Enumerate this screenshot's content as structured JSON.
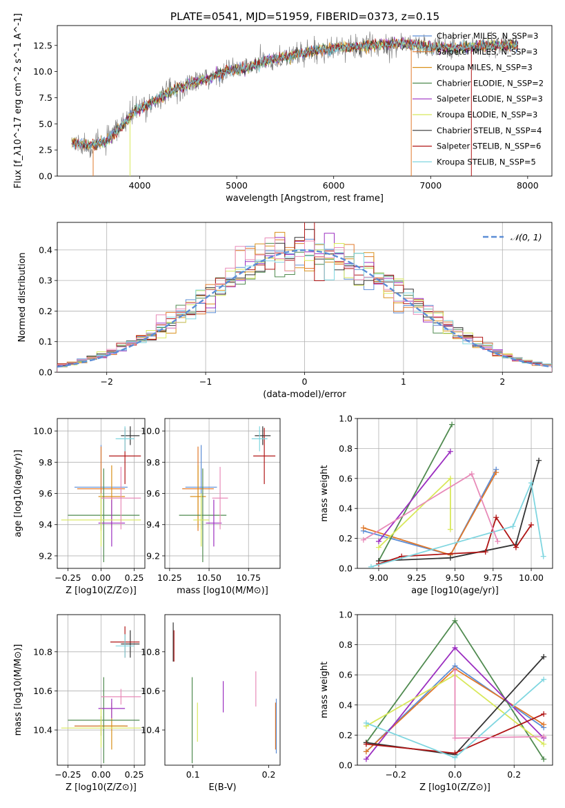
{
  "figure": {
    "title": "PLATE=0541, MJD=51959, FIBERID=0373, z=0.15"
  },
  "chart_data": [
    {
      "id": "spectrum",
      "type": "line",
      "xlabel": "wavelength [Angstrom, rest frame]",
      "ylabel": "Flux [f_λ10^-17 erg cm^-2 s^-1 A^-1]",
      "xlim": [
        3150,
        8250
      ],
      "ylim": [
        0,
        14.4
      ],
      "xticks": [
        4000,
        5000,
        6000,
        7000,
        8000
      ],
      "yticks": [
        0.0,
        2.5,
        5.0,
        7.5,
        10.0,
        12.5
      ],
      "wave_range": [
        3300,
        7900
      ],
      "continuum_anchors": [
        [
          3300,
          3.2
        ],
        [
          3500,
          2.9
        ],
        [
          3650,
          3.3
        ],
        [
          3800,
          4.6
        ],
        [
          3950,
          6.2
        ],
        [
          4100,
          6.9
        ],
        [
          4300,
          8.0
        ],
        [
          4500,
          8.8
        ],
        [
          4700,
          9.3
        ],
        [
          4900,
          10.1
        ],
        [
          5100,
          10.3
        ],
        [
          5300,
          11.0
        ],
        [
          5500,
          11.4
        ],
        [
          5800,
          12.0
        ],
        [
          6100,
          12.3
        ],
        [
          6400,
          12.5
        ],
        [
          6700,
          12.7
        ],
        [
          7000,
          12.3
        ],
        [
          7300,
          12.3
        ],
        [
          7600,
          12.5
        ],
        [
          7900,
          12.5
        ]
      ],
      "series": [
        {
          "name": "Chabrier MILES, N_SSP=3",
          "color": "#5b8dd6"
        },
        {
          "name": "Salpeter MILES, N_SSP=3",
          "color": "#e0782a"
        },
        {
          "name": "Kroupa MILES, N_SSP=3",
          "color": "#d9901a"
        },
        {
          "name": "Chabrier ELODIE, N_SSP=2",
          "color": "#4f8a4f"
        },
        {
          "name": "Salpeter ELODIE, N_SSP=3",
          "color": "#9b2ec0"
        },
        {
          "name": "Kroupa ELODIE, N_SSP=3",
          "color": "#d8e85a"
        },
        {
          "name": "Chabrier STELIB, N_SSP=4",
          "color": "#333333"
        },
        {
          "name": "Salpeter STELIB, N_SSP=6",
          "color": "#b01515"
        },
        {
          "name": "Kroupa STELIB, N_SSP=5",
          "color": "#7fd6e0"
        }
      ],
      "data_color": "#808080"
    },
    {
      "id": "residuals",
      "type": "histogram",
      "xlabel": "(data-model)/error",
      "ylabel": "Normed distribution",
      "xlim": [
        -2.5,
        2.5
      ],
      "ylim": [
        0,
        0.49
      ],
      "xticks": [
        -2,
        -1,
        0,
        1,
        2
      ],
      "xtick_labels": [
        "−2",
        "−1",
        "0",
        "1",
        "2"
      ],
      "yticks": [
        0.0,
        0.1,
        0.2,
        0.3,
        0.4
      ],
      "grid": true,
      "legend": {
        "label": "𝒩(0, 1)",
        "placement": "top-right",
        "color": "#5b8dd6"
      },
      "bins": [
        -2.5,
        2.5,
        50
      ]
    },
    {
      "id": "age_vs_Z",
      "type": "scatter",
      "xlabel": "Z [log10(Z/Z⊙)]",
      "ylabel": "age  [log10(age/yr)]",
      "xlim": [
        -0.33,
        0.33
      ],
      "ylim": [
        9.12,
        10.08
      ],
      "xticks": [
        -0.25,
        0.0,
        0.25
      ],
      "xtick_labels": [
        "−0.25",
        "0.00",
        "0.25"
      ],
      "yticks": [
        9.2,
        9.4,
        9.6,
        9.8,
        10.0
      ],
      "grid": true,
      "points": [
        {
          "color": "#5b8dd6",
          "x": 0.0,
          "xerr": 0.2,
          "y": 9.64,
          "yerr": 0.27
        },
        {
          "color": "#e0782a",
          "x": 0.0,
          "xerr": 0.18,
          "y": 9.63,
          "yerr": 0.27
        },
        {
          "color": "#d9901a",
          "x": 0.08,
          "xerr": 0.1,
          "y": 9.58,
          "yerr": 0.2
        },
        {
          "color": "#4f8a4f",
          "x": 0.02,
          "xerr": 0.27,
          "y": 9.46,
          "yerr": 0.3
        },
        {
          "color": "#9b2ec0",
          "x": 0.08,
          "xerr": 0.1,
          "y": 9.41,
          "yerr": 0.15
        },
        {
          "color": "#d8e85a",
          "x": 0.0,
          "xerr": 0.3,
          "y": 9.43,
          "yerr": 0.17
        },
        {
          "color": "#333333",
          "x": 0.22,
          "xerr": 0.07,
          "y": 9.97,
          "yerr": 0.06
        },
        {
          "color": "#b01515",
          "x": 0.18,
          "xerr": 0.12,
          "y": 9.84,
          "yerr": 0.18
        },
        {
          "color": "#7fd6e0",
          "x": 0.18,
          "xerr": 0.07,
          "y": 9.95,
          "yerr": 0.08
        },
        {
          "color": "#e88ab8",
          "x": 0.15,
          "xerr": 0.15,
          "y": 9.57,
          "yerr": 0.2
        }
      ]
    },
    {
      "id": "age_vs_mass",
      "type": "scatter",
      "xlabel": "mass [log10(M/M⊙)]",
      "ylabel": "",
      "xlim": [
        10.22,
        10.95
      ],
      "ylim": [
        9.12,
        10.08
      ],
      "xticks": [
        10.25,
        10.5,
        10.75
      ],
      "xtick_labels": [
        "10.25",
        "10.50",
        "10.75"
      ],
      "yticks": [
        9.2,
        9.4,
        9.6,
        9.8,
        10.0
      ],
      "grid": true,
      "points": [
        {
          "color": "#5b8dd6",
          "x": 10.45,
          "xerr": 0.1,
          "y": 9.64,
          "yerr": 0.27
        },
        {
          "color": "#e0782a",
          "x": 10.43,
          "xerr": 0.1,
          "y": 9.63,
          "yerr": 0.27
        },
        {
          "color": "#d9901a",
          "x": 10.43,
          "xerr": 0.05,
          "y": 9.58,
          "yerr": 0.2
        },
        {
          "color": "#4f8a4f",
          "x": 10.46,
          "xerr": 0.15,
          "y": 9.46,
          "yerr": 0.3
        },
        {
          "color": "#9b2ec0",
          "x": 10.53,
          "xerr": 0.05,
          "y": 9.41,
          "yerr": 0.15
        },
        {
          "color": "#d8e85a",
          "x": 10.45,
          "xerr": 0.05,
          "y": 9.43,
          "yerr": 0.17
        },
        {
          "color": "#333333",
          "x": 10.84,
          "xerr": 0.05,
          "y": 9.97,
          "yerr": 0.06
        },
        {
          "color": "#b01515",
          "x": 10.85,
          "xerr": 0.07,
          "y": 9.84,
          "yerr": 0.18
        },
        {
          "color": "#7fd6e0",
          "x": 10.82,
          "xerr": 0.05,
          "y": 9.95,
          "yerr": 0.08
        },
        {
          "color": "#e88ab8",
          "x": 10.57,
          "xerr": 0.05,
          "y": 9.57,
          "yerr": 0.2
        }
      ]
    },
    {
      "id": "massweight_vs_age",
      "type": "line",
      "xlabel": "age  [log10(age/yr)]",
      "ylabel": "mass weight",
      "xlim": [
        8.86,
        10.14
      ],
      "ylim": [
        0,
        1
      ],
      "xticks": [
        9.0,
        9.25,
        9.5,
        9.75,
        10.0
      ],
      "xtick_labels": [
        "9.00",
        "9.25",
        "9.50",
        "9.75",
        "10.00"
      ],
      "yticks": [
        0.0,
        0.2,
        0.4,
        0.6,
        0.8,
        1.0
      ],
      "grid": true,
      "series": [
        {
          "color": "#5b8dd6",
          "x": [
            8.9,
            9.47,
            9.77
          ],
          "y": [
            0.25,
            0.09,
            0.66
          ]
        },
        {
          "color": "#e0782a",
          "x": [
            8.9,
            9.47,
            9.77
          ],
          "y": [
            0.27,
            0.09,
            0.64
          ]
        },
        {
          "color": "#4f8a4f",
          "x": [
            9.0,
            9.48
          ],
          "y": [
            0.05,
            0.96
          ]
        },
        {
          "color": "#9b2ec0",
          "x": [
            9.0,
            9.47
          ],
          "y": [
            0.18,
            0.78
          ]
        },
        {
          "color": "#d8e85a",
          "x": [
            9.0,
            9.47,
            9.47
          ],
          "y": [
            0.14,
            0.6,
            0.26
          ]
        },
        {
          "color": "#333333",
          "x": [
            9.0,
            9.47,
            9.9,
            10.05
          ],
          "y": [
            0.05,
            0.07,
            0.16,
            0.72
          ]
        },
        {
          "color": "#b01515",
          "x": [
            9.0,
            9.15,
            9.7,
            9.77,
            9.9,
            10.0
          ],
          "y": [
            0.03,
            0.08,
            0.11,
            0.34,
            0.14,
            0.29
          ]
        },
        {
          "color": "#7fd6e0",
          "x": [
            8.95,
            9.88,
            10.0,
            10.08
          ],
          "y": [
            0.01,
            0.28,
            0.57,
            0.08
          ]
        },
        {
          "color": "#e88ab8",
          "x": [
            8.9,
            9.61,
            9.78
          ],
          "y": [
            0.19,
            0.63,
            0.18
          ]
        }
      ]
    },
    {
      "id": "mass_vs_Z",
      "type": "scatter",
      "xlabel": "Z [log10(Z/Z⊙)]",
      "ylabel": "mass [log10(M/M⊙)]",
      "xlim": [
        -0.33,
        0.33
      ],
      "ylim": [
        10.22,
        10.99
      ],
      "xticks": [
        -0.25,
        0.0,
        0.25
      ],
      "xtick_labels": [
        "−0.25",
        "0.00",
        "0.25"
      ],
      "yticks": [
        10.4,
        10.6,
        10.8
      ],
      "grid": true,
      "points": [
        {
          "color": "#5b8dd6",
          "x": 0.0,
          "xerr": 0.2,
          "y": 10.42,
          "yerr": 0.05
        },
        {
          "color": "#e0782a",
          "x": 0.0,
          "xerr": 0.2,
          "y": 10.42,
          "yerr": 0.05
        },
        {
          "color": "#d9901a",
          "x": 0.08,
          "xerr": 0.1,
          "y": 10.42,
          "yerr": 0.12
        },
        {
          "color": "#4f8a4f",
          "x": 0.02,
          "xerr": 0.27,
          "y": 10.45,
          "yerr": 0.22
        },
        {
          "color": "#9b2ec0",
          "x": 0.08,
          "xerr": 0.1,
          "y": 10.51,
          "yerr": 0.05
        },
        {
          "color": "#d8e85a",
          "x": 0.0,
          "xerr": 0.3,
          "y": 10.41,
          "yerr": 0.1
        },
        {
          "color": "#333333",
          "x": 0.22,
          "xerr": 0.07,
          "y": 10.84,
          "yerr": 0.07
        },
        {
          "color": "#b01515",
          "x": 0.18,
          "xerr": 0.11,
          "y": 10.85,
          "yerr": 0.08
        },
        {
          "color": "#7fd6e0",
          "x": 0.18,
          "xerr": 0.07,
          "y": 10.83,
          "yerr": 0.06
        },
        {
          "color": "#e88ab8",
          "x": 0.15,
          "xerr": 0.15,
          "y": 10.57,
          "yerr": 0.04
        }
      ]
    },
    {
      "id": "mass_vs_ebv",
      "type": "scatter",
      "xlabel": "E(B-V)",
      "ylabel": "",
      "xlim": [
        0.063,
        0.215
      ],
      "ylim": [
        10.22,
        10.99
      ],
      "xticks": [
        0.1,
        0.2
      ],
      "xtick_labels": [
        "0.1",
        "0.2"
      ],
      "yticks": [
        10.4,
        10.6,
        10.8
      ],
      "grid": false,
      "points": [
        {
          "color": "#5b8dd6",
          "x": 0.21,
          "y": 10.42,
          "yerr": 0.14
        },
        {
          "color": "#e0782a",
          "x": 0.209,
          "y": 10.42,
          "yerr": 0.12
        },
        {
          "color": "#4f8a4f",
          "x": 0.099,
          "y": 10.45,
          "yerr": 0.22
        },
        {
          "color": "#9b2ec0",
          "x": 0.14,
          "y": 10.57,
          "yerr": 0.08
        },
        {
          "color": "#d8e85a",
          "x": 0.106,
          "y": 10.44,
          "yerr": 0.1
        },
        {
          "color": "#333333",
          "x": 0.074,
          "y": 10.85,
          "yerr": 0.1
        },
        {
          "color": "#b01515",
          "x": 0.075,
          "y": 10.83,
          "yerr": 0.08
        },
        {
          "color": "#e88ab8",
          "x": 0.183,
          "y": 10.61,
          "yerr": 0.09
        }
      ]
    },
    {
      "id": "massweight_vs_Z",
      "type": "line",
      "xlabel": "Z [log10(Z/Z⊙)]",
      "ylabel": "mass weight",
      "xlim": [
        -0.33,
        0.33
      ],
      "ylim": [
        0,
        1
      ],
      "xticks": [
        -0.2,
        0.0,
        0.2
      ],
      "xtick_labels": [
        "−0.2",
        "0.0",
        "0.2"
      ],
      "yticks": [
        0.0,
        0.2,
        0.4,
        0.6,
        0.8,
        1.0
      ],
      "grid": true,
      "series": [
        {
          "color": "#5b8dd6",
          "x": [
            -0.3,
            0.0,
            0.3
          ],
          "y": [
            0.09,
            0.66,
            0.25
          ]
        },
        {
          "color": "#e0782a",
          "x": [
            -0.3,
            0.0,
            0.3
          ],
          "y": [
            0.09,
            0.64,
            0.27
          ]
        },
        {
          "color": "#4f8a4f",
          "x": [
            -0.3,
            0.0,
            0.3
          ],
          "y": [
            0.15,
            0.96,
            0.04
          ]
        },
        {
          "color": "#9b2ec0",
          "x": [
            -0.3,
            0.0,
            0.3
          ],
          "y": [
            0.04,
            0.78,
            0.18
          ]
        },
        {
          "color": "#d8e85a",
          "x": [
            -0.3,
            0.0,
            0.3
          ],
          "y": [
            0.26,
            0.6,
            0.14
          ]
        },
        {
          "color": "#333333",
          "x": [
            -0.3,
            0.0,
            0.3
          ],
          "y": [
            0.15,
            0.07,
            0.72
          ]
        },
        {
          "color": "#b01515",
          "x": [
            -0.3,
            0.0,
            0.3
          ],
          "y": [
            0.14,
            0.08,
            0.34
          ]
        },
        {
          "color": "#7fd6e0",
          "x": [
            -0.3,
            0.0,
            0.3
          ],
          "y": [
            0.28,
            0.05,
            0.57
          ]
        },
        {
          "color": "#e88ab8",
          "x": [
            0.0,
            0.0,
            0.3
          ],
          "y": [
            0.63,
            0.18,
            0.19
          ]
        }
      ]
    }
  ]
}
